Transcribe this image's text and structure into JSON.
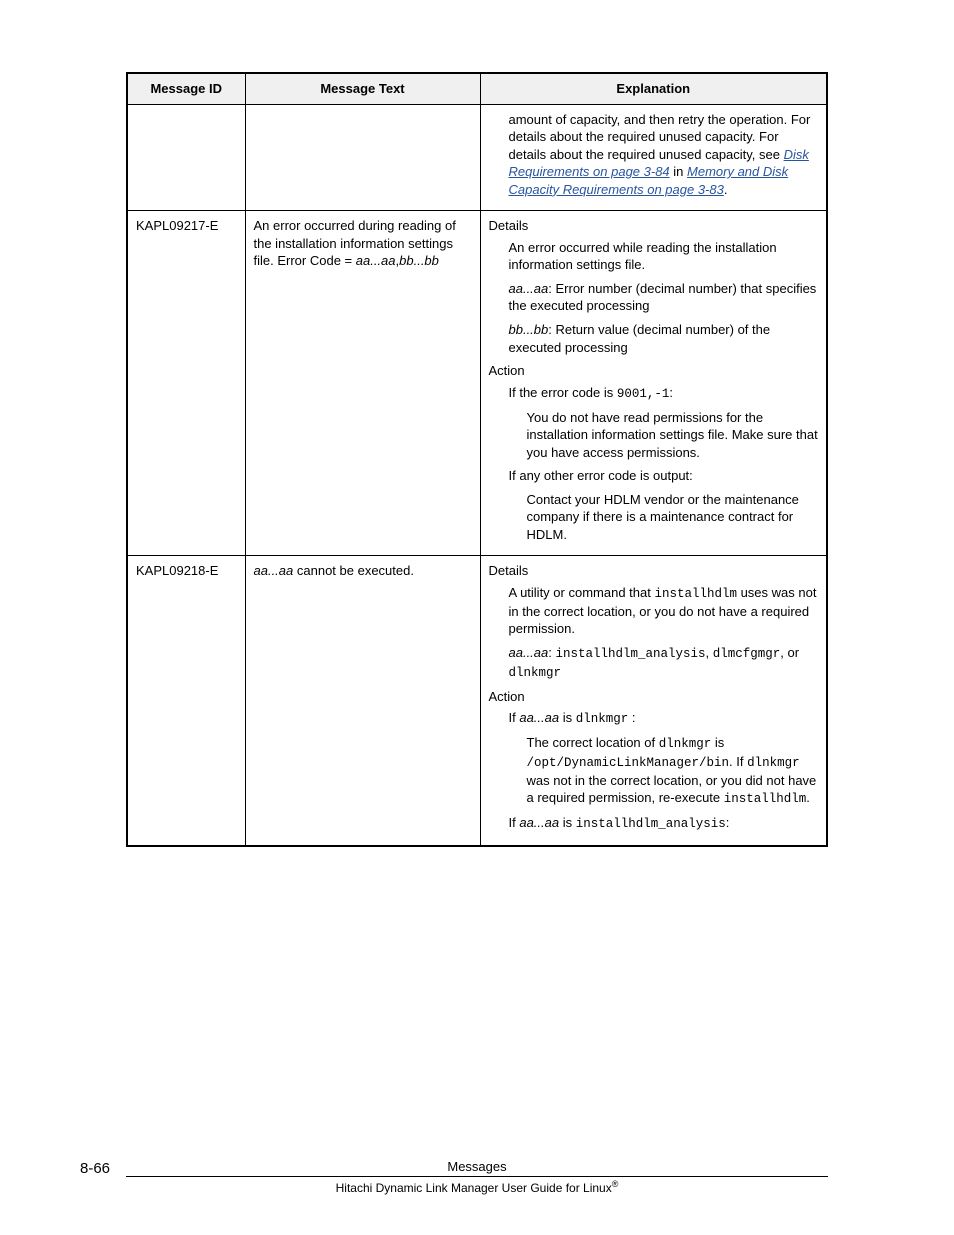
{
  "table": {
    "headers": [
      "Message ID",
      "Message Text",
      "Explanation"
    ],
    "rows": [
      {
        "id": "",
        "text_parts": [],
        "explanation_parts": [
          {
            "style": "indent1",
            "runs": [
              {
                "t": "amount of capacity, and then retry the operation. For details about the required unused capacity. For details about the required unused capacity, see "
              },
              {
                "t": "Disk Requirements on page 3-84",
                "link": true
              },
              {
                "t": " in "
              },
              {
                "t": "Memory and Disk Capacity Requirements on page 3-83",
                "link": true
              },
              {
                "t": "."
              }
            ]
          }
        ]
      },
      {
        "id": "KAPL09217-E",
        "text_parts": [
          {
            "t": "An error occurred during reading of the installation information settings file. Error Code = "
          },
          {
            "t": "aa...aa",
            "italic": true
          },
          {
            "t": ","
          },
          {
            "t": "bb...bb",
            "italic": true
          }
        ],
        "explanation_parts": [
          {
            "style": "section",
            "runs": [
              {
                "t": "Details"
              }
            ]
          },
          {
            "style": "indent1",
            "runs": [
              {
                "t": "An error occurred while reading the installation information settings file."
              }
            ]
          },
          {
            "style": "indent1",
            "runs": [
              {
                "t": "aa...aa",
                "italic": true
              },
              {
                "t": ": Error number (decimal number) that specifies the executed processing"
              }
            ]
          },
          {
            "style": "indent1",
            "runs": [
              {
                "t": "bb...bb",
                "italic": true
              },
              {
                "t": ": Return value (decimal number) of the executed processing"
              }
            ]
          },
          {
            "style": "section",
            "runs": [
              {
                "t": "Action"
              }
            ]
          },
          {
            "style": "indent1",
            "runs": [
              {
                "t": "If the error code is "
              },
              {
                "t": "9001,-1",
                "mono": true
              },
              {
                "t": ":"
              }
            ]
          },
          {
            "style": "indent2",
            "runs": [
              {
                "t": "You do not have read permissions for the installation information settings file. Make sure that you have access permissions."
              }
            ]
          },
          {
            "style": "indent1",
            "runs": [
              {
                "t": "If any other error code is output:"
              }
            ]
          },
          {
            "style": "indent2",
            "runs": [
              {
                "t": "Contact your HDLM vendor or the maintenance company if there is a maintenance contract for HDLM."
              }
            ]
          }
        ]
      },
      {
        "id": "KAPL09218-E",
        "text_parts": [
          {
            "t": "aa...aa",
            "italic": true
          },
          {
            "t": " cannot be executed."
          }
        ],
        "explanation_parts": [
          {
            "style": "section",
            "runs": [
              {
                "t": "Details"
              }
            ]
          },
          {
            "style": "indent1",
            "runs": [
              {
                "t": "A utility or command that "
              },
              {
                "t": "installhdlm",
                "mono": true
              },
              {
                "t": " uses was not in the correct location, or you do not have a required permission."
              }
            ]
          },
          {
            "style": "indent1",
            "runs": [
              {
                "t": "aa...aa",
                "italic": true
              },
              {
                "t": ": "
              },
              {
                "t": "installhdlm_analysis",
                "mono": true
              },
              {
                "t": ", "
              },
              {
                "t": "dlmcfgmgr",
                "mono": true
              },
              {
                "t": ", or "
              },
              {
                "t": "dlnkmgr",
                "mono": true
              }
            ]
          },
          {
            "style": "section",
            "runs": [
              {
                "t": "Action"
              }
            ]
          },
          {
            "style": "indent1",
            "runs": [
              {
                "t": "If "
              },
              {
                "t": "aa...aa",
                "italic": true
              },
              {
                "t": " is "
              },
              {
                "t": "dlnkmgr",
                "mono": true
              },
              {
                "t": " :"
              }
            ]
          },
          {
            "style": "indent2",
            "runs": [
              {
                "t": "The correct location of "
              },
              {
                "t": "dlnkmgr",
                "mono": true
              },
              {
                "t": " is "
              },
              {
                "t": "/opt/DynamicLinkManager/bin",
                "mono": true
              },
              {
                "t": ". If "
              },
              {
                "t": "dlnkmgr",
                "mono": true
              },
              {
                "t": " was not in the correct location, or you did not have a required permission, re-execute "
              },
              {
                "t": "installhdlm",
                "mono": true
              },
              {
                "t": "."
              }
            ]
          },
          {
            "style": "indent1",
            "runs": [
              {
                "t": "If "
              },
              {
                "t": "aa...aa",
                "italic": true
              },
              {
                "t": " is "
              },
              {
                "t": "installhdlm_analysis",
                "mono": true
              },
              {
                "t": ":"
              }
            ]
          }
        ]
      }
    ]
  },
  "footer": {
    "page_number": "8-66",
    "section_title": "Messages",
    "book_title_prefix": "Hitachi Dynamic Link Manager User Guide for Linux",
    "registered_mark": "®"
  }
}
